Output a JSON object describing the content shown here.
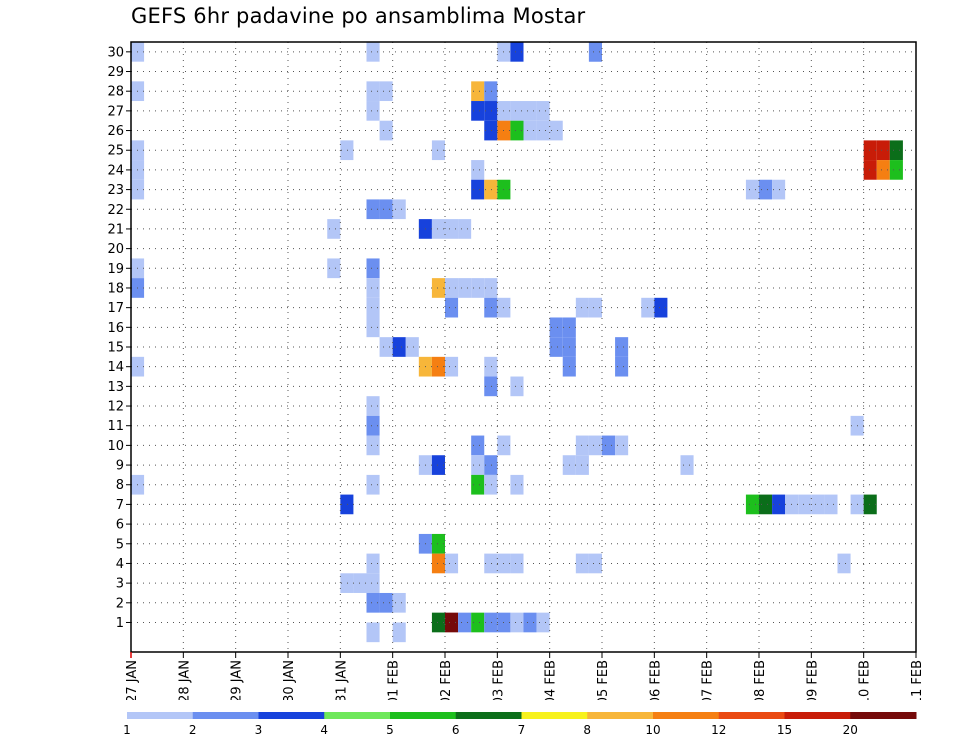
{
  "chart_data": {
    "type": "heatmap",
    "title": "GEFS 6hr padavine po ansamblima Mostar",
    "members": [
      "1",
      "2",
      "3",
      "4",
      "5",
      "6",
      "7",
      "8",
      "9",
      "10",
      "11",
      "12",
      "13",
      "14",
      "15",
      "16",
      "17",
      "18",
      "19",
      "20",
      "21",
      "22",
      "23",
      "24",
      "25",
      "26",
      "27",
      "28",
      "29",
      "30"
    ],
    "x_ticks": [
      "27 JAN",
      "28 JAN",
      "29 JAN",
      "30 JAN",
      "31 JAN",
      "01 FEB",
      "02 FEB",
      "03 FEB",
      "04 FEB",
      "05 FEB",
      "06 FEB",
      "07 FEB",
      "08 FEB",
      "09 FEB",
      "10 FEB",
      "11 FEB"
    ],
    "x_range": [
      "27 JAN",
      "11 FEB"
    ],
    "y_range": [
      1,
      30
    ],
    "time_step_hours": 6,
    "grid": true,
    "legend": {
      "placement": "bottom",
      "levels": [
        "1",
        "2",
        "3",
        "4",
        "5",
        "6",
        "7",
        "8",
        "10",
        "12",
        "15",
        "20"
      ],
      "colors": [
        "#b3c6f7",
        "#6b8ff0",
        "#1742dc",
        "#6ee85a",
        "#1dbf1d",
        "#0b6e1a",
        "#f7f21d",
        "#f7b63a",
        "#f57f12",
        "#ea4a12",
        "#c81c08",
        "#750a0a"
      ]
    },
    "cells": [
      [
        "27 JAN 00",
        1,
        30,
        1
      ],
      [
        "31 JAN 12",
        1,
        30,
        1
      ],
      [
        "03 FEB 00",
        1,
        30,
        1
      ],
      [
        "03 FEB 06",
        3,
        30,
        1
      ],
      [
        "04 FEB 18",
        1,
        30,
        1
      ],
      [
        "04 FEB 18",
        2,
        30,
        1
      ],
      [
        "27 JAN 00",
        1,
        28,
        1
      ],
      [
        "31 JAN 12",
        1,
        28,
        1
      ],
      [
        "31 JAN 18",
        1,
        28,
        1
      ],
      [
        "02 FEB 12",
        8,
        28,
        1
      ],
      [
        "02 FEB 18",
        2,
        28,
        1
      ],
      [
        "31 JAN 12",
        1,
        27,
        1
      ],
      [
        "02 FEB 12",
        3,
        27,
        1
      ],
      [
        "02 FEB 18",
        3,
        27,
        1
      ],
      [
        "03 FEB 00",
        1,
        27,
        1
      ],
      [
        "03 FEB 06",
        1,
        27,
        1
      ],
      [
        "03 FEB 12",
        1,
        27,
        1
      ],
      [
        "03 FEB 18",
        1,
        27,
        1
      ],
      [
        "31 JAN 18",
        1,
        26,
        1
      ],
      [
        "02 FEB 18",
        3,
        26,
        1
      ],
      [
        "03 FEB 00",
        10,
        26,
        1
      ],
      [
        "03 FEB 06",
        5,
        26,
        1
      ],
      [
        "03 FEB 12",
        1,
        26,
        1
      ],
      [
        "03 FEB 18",
        1,
        26,
        1
      ],
      [
        "04 FEB 00",
        1,
        26,
        1
      ],
      [
        "27 JAN 00",
        1,
        25,
        1
      ],
      [
        "31 JAN 00",
        1,
        25,
        1
      ],
      [
        "01 FEB 18",
        1,
        25,
        1
      ],
      [
        "10 FEB 00",
        15,
        25,
        1
      ],
      [
        "10 FEB 06",
        15,
        25,
        1
      ],
      [
        "10 FEB 12",
        6,
        25,
        1
      ],
      [
        "27 JAN 00",
        1,
        24,
        1
      ],
      [
        "02 FEB 12",
        1,
        24,
        1
      ],
      [
        "10 FEB 00",
        15,
        24,
        1
      ],
      [
        "10 FEB 06",
        10,
        24,
        1
      ],
      [
        "10 FEB 12",
        5,
        24,
        1
      ],
      [
        "27 JAN 00",
        1,
        23,
        1
      ],
      [
        "02 FEB 12",
        3,
        23,
        1
      ],
      [
        "02 FEB 18",
        8,
        23,
        1
      ],
      [
        "03 FEB 00",
        5,
        23,
        1
      ],
      [
        "07 FEB 18",
        1,
        23,
        1
      ],
      [
        "08 FEB 00",
        2,
        23,
        1
      ],
      [
        "08 FEB 06",
        1,
        23,
        1
      ],
      [
        "31 JAN 12",
        2,
        22,
        1
      ],
      [
        "31 JAN 18",
        2,
        22,
        1
      ],
      [
        "01 FEB 00",
        1,
        22,
        1
      ],
      [
        "30 JAN 18",
        1,
        21,
        1
      ],
      [
        "01 FEB 12",
        3,
        21,
        1
      ],
      [
        "01 FEB 18",
        1,
        21,
        1
      ],
      [
        "02 FEB 00",
        1,
        21,
        1
      ],
      [
        "02 FEB 06",
        1,
        21,
        1
      ],
      [
        "27 JAN 00",
        1,
        19,
        1
      ],
      [
        "30 JAN 18",
        1,
        19,
        1
      ],
      [
        "31 JAN 12",
        2,
        19,
        1
      ],
      [
        "27 JAN 00",
        2,
        18,
        1
      ],
      [
        "31 JAN 12",
        1,
        18,
        1
      ],
      [
        "01 FEB 18",
        8,
        18,
        1
      ],
      [
        "02 FEB 00",
        1,
        18,
        1
      ],
      [
        "02 FEB 06",
        1,
        18,
        1
      ],
      [
        "02 FEB 12",
        1,
        18,
        1
      ],
      [
        "02 FEB 18",
        1,
        18,
        1
      ],
      [
        "31 JAN 12",
        1,
        17,
        1
      ],
      [
        "02 FEB 00",
        2,
        17,
        1
      ],
      [
        "02 FEB 18",
        2,
        17,
        1
      ],
      [
        "03 FEB 00",
        1,
        17,
        1
      ],
      [
        "04 FEB 12",
        1,
        17,
        1
      ],
      [
        "04 FEB 18",
        1,
        17,
        1
      ],
      [
        "05 FEB 18",
        1,
        17,
        1
      ],
      [
        "06 FEB 00",
        3,
        17,
        1
      ],
      [
        "31 JAN 12",
        1,
        16,
        1
      ],
      [
        "04 FEB 00",
        2,
        16,
        1
      ],
      [
        "04 FEB 06",
        2,
        16,
        1
      ],
      [
        "31 JAN 18",
        1,
        15,
        1
      ],
      [
        "01 FEB 00",
        3,
        15,
        1
      ],
      [
        "01 FEB 06",
        1,
        15,
        1
      ],
      [
        "04 FEB 00",
        2,
        15,
        1
      ],
      [
        "04 FEB 06",
        2,
        15,
        1
      ],
      [
        "05 FEB 06",
        2,
        15,
        1
      ],
      [
        "27 JAN 00",
        1,
        14,
        1
      ],
      [
        "01 FEB 12",
        8,
        14,
        1
      ],
      [
        "01 FEB 18",
        10,
        14,
        1
      ],
      [
        "02 FEB 00",
        1,
        14,
        1
      ],
      [
        "02 FEB 18",
        1,
        14,
        1
      ],
      [
        "04 FEB 06",
        2,
        14,
        1
      ],
      [
        "05 FEB 06",
        2,
        14,
        1
      ],
      [
        "02 FEB 18",
        2,
        13,
        1
      ],
      [
        "03 FEB 06",
        1,
        13,
        1
      ],
      [
        "31 JAN 12",
        1,
        12,
        1
      ],
      [
        "31 JAN 12",
        2,
        11,
        1
      ],
      [
        "09 FEB 18",
        1,
        11,
        1
      ],
      [
        "31 JAN 12",
        1,
        10,
        1
      ],
      [
        "02 FEB 12",
        2,
        10,
        1
      ],
      [
        "03 FEB 00",
        1,
        10,
        1
      ],
      [
        "04 FEB 12",
        1,
        10,
        1
      ],
      [
        "04 FEB 18",
        1,
        10,
        1
      ],
      [
        "05 FEB 00",
        2,
        10,
        1
      ],
      [
        "05 FEB 06",
        1,
        10,
        1
      ],
      [
        "01 FEB 12",
        1,
        9,
        1
      ],
      [
        "01 FEB 18",
        3,
        9,
        1
      ],
      [
        "02 FEB 12",
        1,
        9,
        1
      ],
      [
        "02 FEB 18",
        2,
        9,
        1
      ],
      [
        "04 FEB 06",
        1,
        9,
        1
      ],
      [
        "04 FEB 12",
        1,
        9,
        1
      ],
      [
        "06 FEB 12",
        1,
        9,
        1
      ],
      [
        "27 JAN 00",
        1,
        8,
        1
      ],
      [
        "31 JAN 12",
        1,
        8,
        1
      ],
      [
        "02 FEB 12",
        5,
        8,
        1
      ],
      [
        "02 FEB 18",
        1,
        8,
        1
      ],
      [
        "03 FEB 06",
        1,
        8,
        1
      ],
      [
        "31 JAN 00",
        3,
        7,
        1
      ],
      [
        "07 FEB 18",
        5,
        7,
        1
      ],
      [
        "08 FEB 00",
        6,
        7,
        1
      ],
      [
        "08 FEB 06",
        3,
        7,
        1
      ],
      [
        "08 FEB 12",
        1,
        7,
        1
      ],
      [
        "08 FEB 18",
        1,
        7,
        1
      ],
      [
        "09 FEB 00",
        1,
        7,
        1
      ],
      [
        "09 FEB 06",
        1,
        7,
        1
      ],
      [
        "09 FEB 18",
        1,
        7,
        1
      ],
      [
        "10 FEB 00",
        6,
        7,
        1
      ],
      [
        "01 FEB 12",
        2,
        5,
        1
      ],
      [
        "01 FEB 18",
        5,
        5,
        1
      ],
      [
        "31 JAN 12",
        1,
        4,
        1
      ],
      [
        "01 FEB 18",
        10,
        4,
        1
      ],
      [
        "02 FEB 00",
        1,
        4,
        1
      ],
      [
        "02 FEB 18",
        1,
        4,
        1
      ],
      [
        "03 FEB 00",
        1,
        4,
        1
      ],
      [
        "03 FEB 06",
        1,
        4,
        1
      ],
      [
        "04 FEB 12",
        1,
        4,
        1
      ],
      [
        "04 FEB 18",
        1,
        4,
        1
      ],
      [
        "09 FEB 12",
        1,
        4,
        1
      ],
      [
        "31 JAN 00",
        1,
        3,
        1
      ],
      [
        "31 JAN 06",
        1,
        3,
        1
      ],
      [
        "31 JAN 12",
        1,
        3,
        1
      ],
      [
        "31 JAN 12",
        2,
        2,
        1
      ],
      [
        "31 JAN 18",
        2,
        2,
        1
      ],
      [
        "01 FEB 00",
        1,
        2,
        1
      ],
      [
        "01 FEB 18",
        6,
        1,
        1
      ],
      [
        "02 FEB 00",
        20,
        1,
        1
      ],
      [
        "02 FEB 06",
        2,
        1,
        1
      ],
      [
        "02 FEB 12",
        5,
        1,
        1
      ],
      [
        "02 FEB 18",
        2,
        1,
        1
      ],
      [
        "03 FEB 00",
        2,
        1,
        1
      ],
      [
        "03 FEB 06",
        1,
        1,
        1
      ],
      [
        "03 FEB 12",
        2,
        1,
        1
      ],
      [
        "03 FEB 18",
        1,
        1,
        1
      ],
      [
        "31 JAN 12",
        1,
        0.5,
        1
      ],
      [
        "01 FEB 00",
        1,
        0.5,
        1
      ]
    ]
  }
}
